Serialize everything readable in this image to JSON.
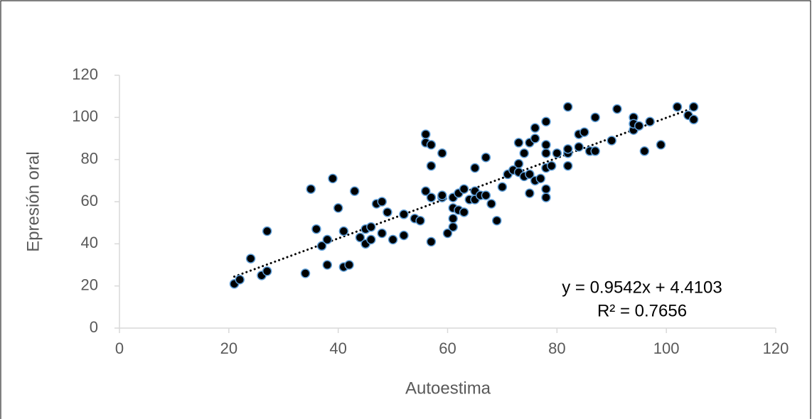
{
  "chart_data": {
    "type": "scatter",
    "x_label": "Autoestima",
    "y_label": "Epresión oral",
    "xlim": [
      0,
      120
    ],
    "xticks": [
      0,
      20,
      40,
      60,
      80,
      100,
      120
    ],
    "ylim": [
      0,
      120
    ],
    "yticks": [
      0,
      20,
      40,
      60,
      80,
      100,
      120
    ],
    "grid": false,
    "series": [
      {
        "color": "#000000",
        "edge_color": "#5b9bd5",
        "x": [
          21,
          22,
          24,
          26,
          27,
          27,
          34,
          35,
          36,
          37,
          38,
          38,
          39,
          40,
          41,
          41,
          42,
          43,
          44,
          45,
          45,
          46,
          46,
          47,
          48,
          48,
          49,
          50,
          52,
          52,
          54,
          55,
          56,
          56,
          56,
          57,
          57,
          57,
          57,
          59,
          59,
          59,
          60,
          61,
          61,
          61,
          61,
          62,
          62,
          63,
          63,
          64,
          65,
          65,
          65,
          66,
          67,
          67,
          68,
          69,
          70,
          71,
          72,
          73,
          73,
          73,
          74,
          74,
          75,
          75,
          75,
          76,
          76,
          76,
          77,
          78,
          78,
          78,
          78,
          78,
          78,
          79,
          80,
          82,
          82,
          82,
          82,
          84,
          84,
          85,
          86,
          87,
          87,
          90,
          91,
          94,
          94,
          94,
          95,
          96,
          97,
          99,
          102,
          104,
          105,
          105
        ],
        "values": [
          21,
          23,
          33,
          25,
          27,
          46,
          26,
          66,
          47,
          39,
          42,
          30,
          71,
          57,
          46,
          29,
          30,
          65,
          43,
          47,
          40,
          42,
          48,
          59,
          60,
          45,
          55,
          42,
          54,
          44,
          52,
          51,
          92,
          88,
          65,
          87,
          77,
          41,
          62,
          83,
          62,
          63,
          45,
          62,
          57,
          52,
          48,
          64,
          56,
          66,
          55,
          61,
          76,
          65,
          61,
          63,
          81,
          63,
          59,
          51,
          67,
          73,
          75,
          78,
          88,
          74,
          83,
          72,
          88,
          64,
          73,
          95,
          90,
          70,
          71,
          98,
          87,
          83,
          76,
          66,
          62,
          77,
          83,
          105,
          83,
          77,
          85,
          86,
          92,
          93,
          84,
          100,
          84,
          89,
          104,
          100,
          94,
          97,
          96,
          84,
          98,
          87,
          105,
          101,
          105,
          99
        ]
      }
    ],
    "trendline": {
      "slope": 0.9542,
      "intercept": 4.4103,
      "r_squared": 0.7656,
      "equation_label": "y = 0.9542x + 4.4103",
      "r_squared_label": "R² = 0.7656"
    }
  }
}
